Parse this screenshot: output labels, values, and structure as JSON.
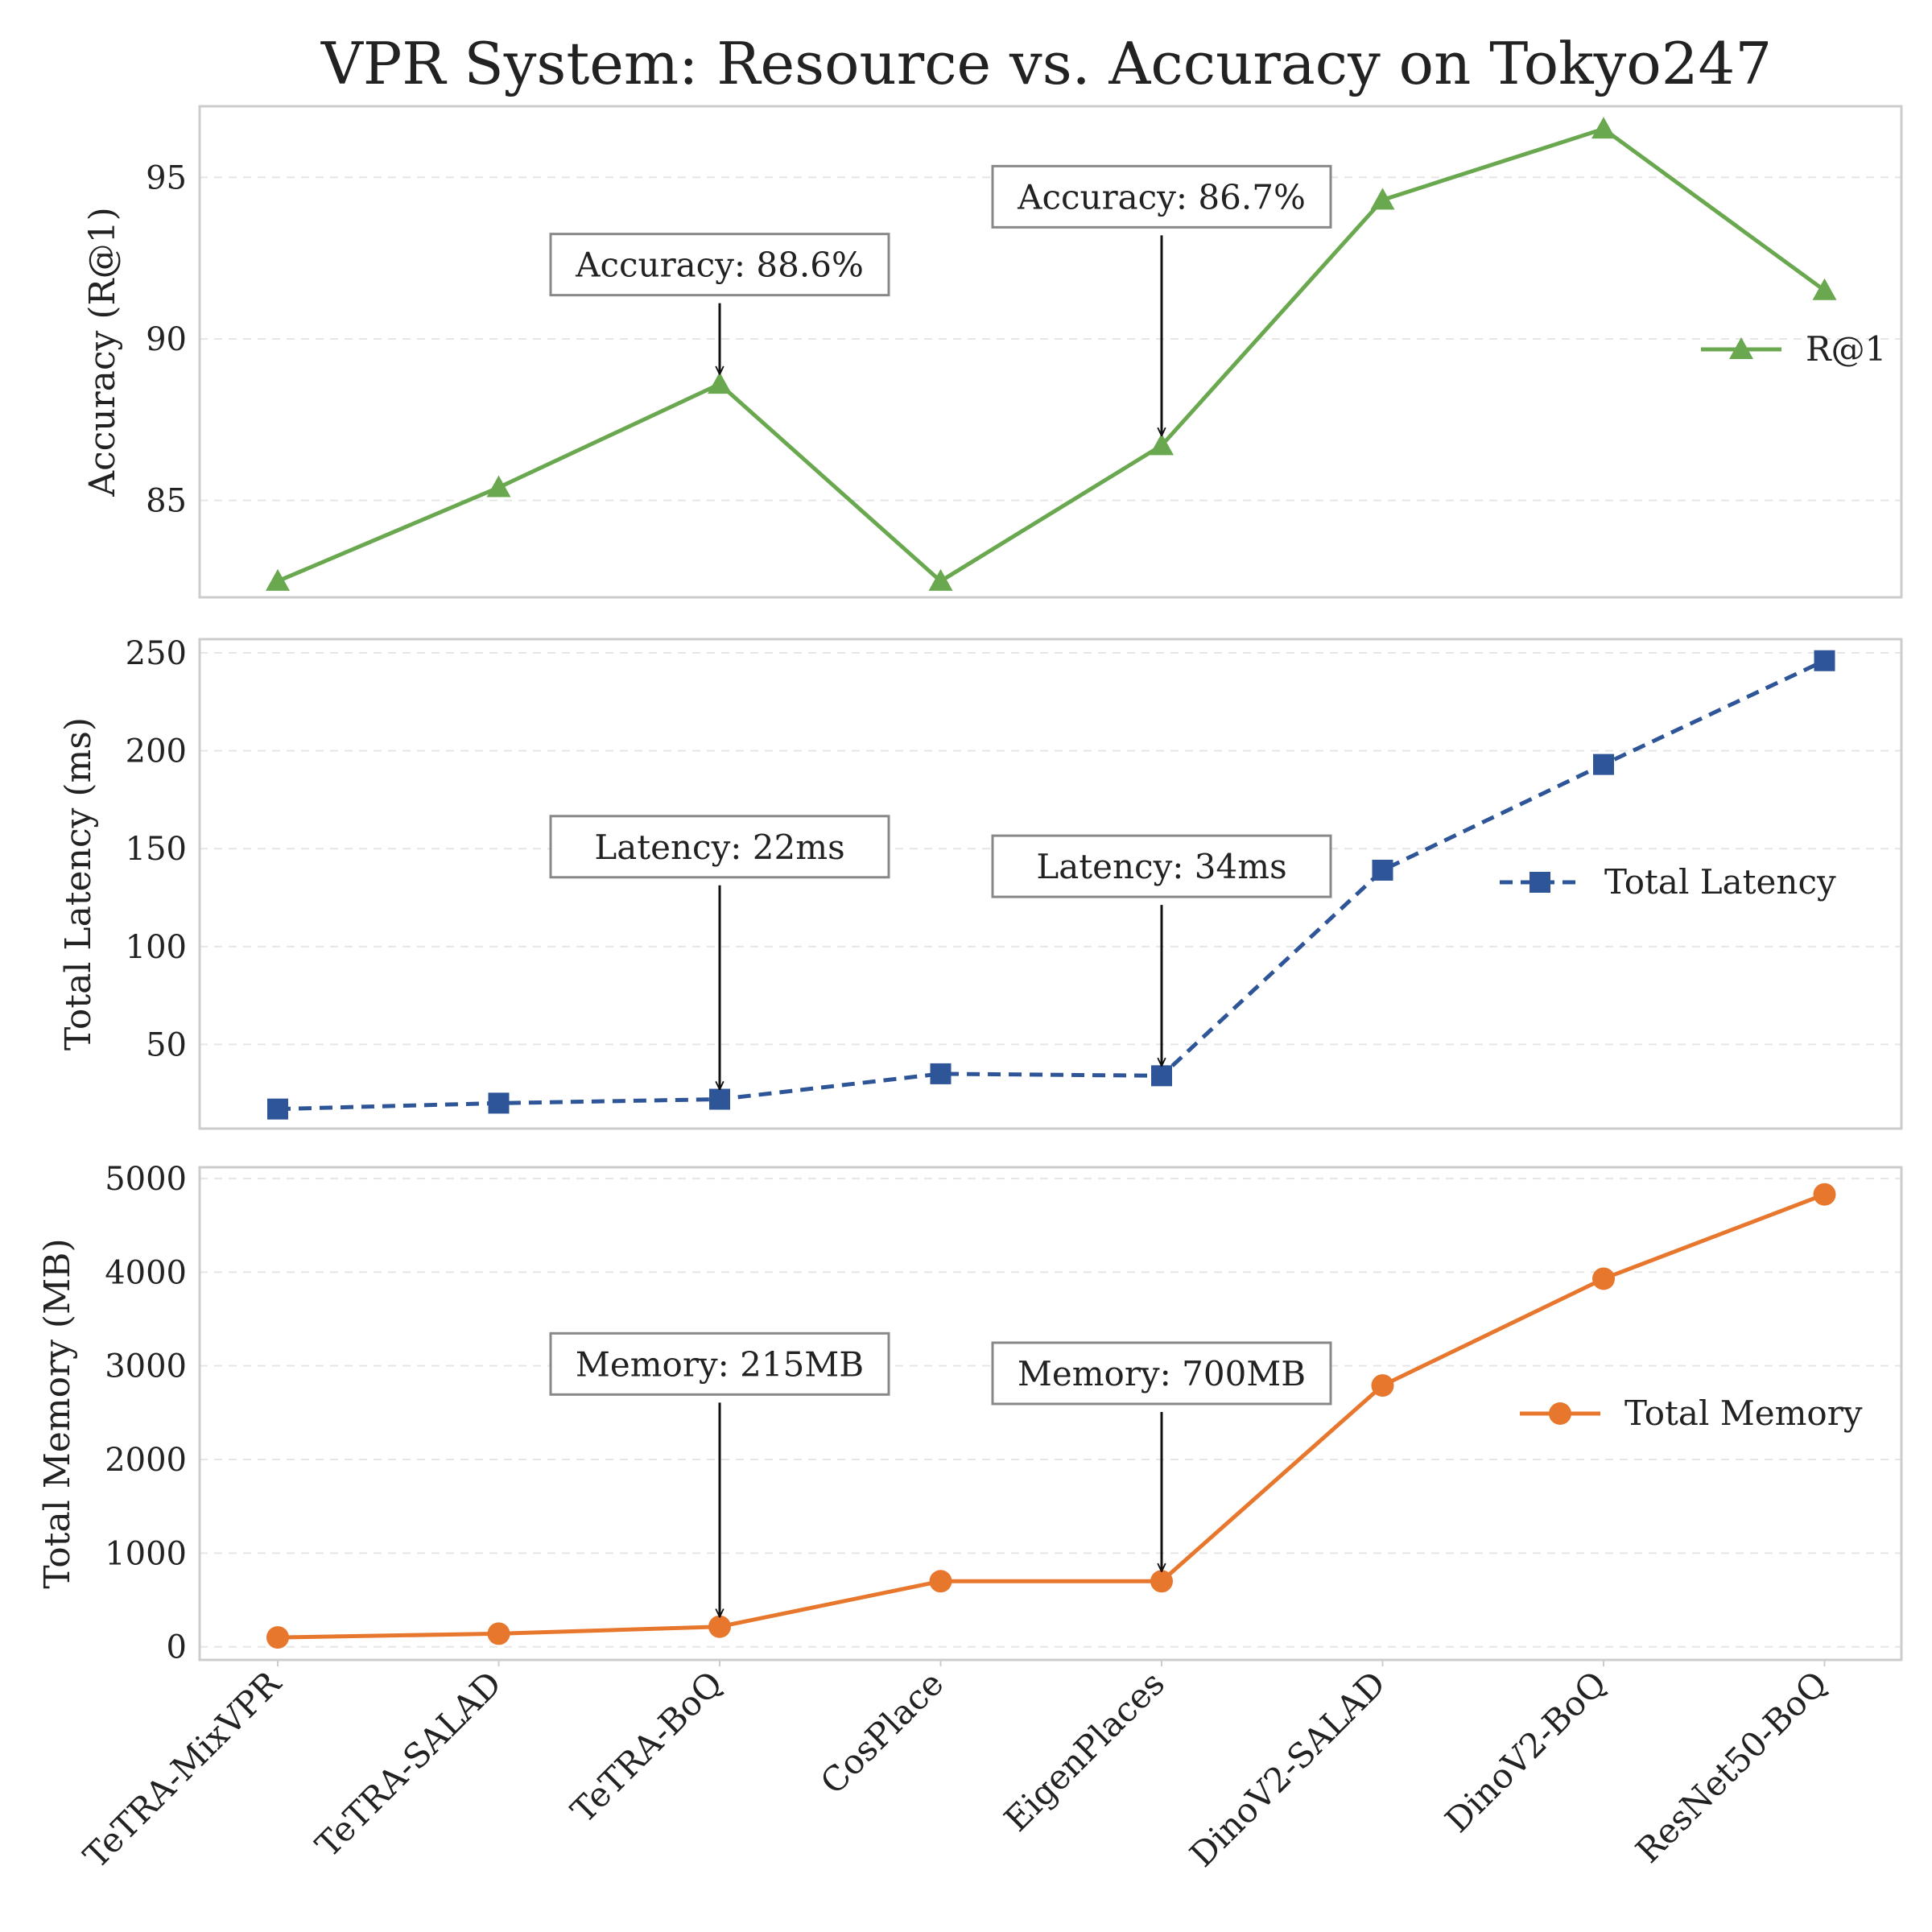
{
  "chart_data": {
    "type": "line",
    "title": "VPR System: Resource vs. Accuracy on Tokyo247",
    "categories": [
      "TeTRA-MixVPR",
      "TeTRA-SALAD",
      "TeTRA-BoQ",
      "CosPlace",
      "EigenPlaces",
      "DinoV2-SALAD",
      "DinoV2-BoQ",
      "ResNet50-BoQ"
    ],
    "panels": [
      {
        "key": "accuracy",
        "ylabel": "Accuracy (R@1)",
        "ylim": [
          82,
          97.2
        ],
        "yticks": [
          85,
          90,
          95
        ],
        "series": [
          {
            "name": "R@1",
            "values": [
              82.5,
              85.4,
              88.6,
              82.5,
              86.7,
              94.3,
              96.5,
              91.5
            ],
            "color": "#6aa84f",
            "marker": "triangle",
            "dash": false
          }
        ],
        "annotations": [
          {
            "text": "Accuracy: 88.6%",
            "index": 2,
            "label_value": 92.3
          },
          {
            "text": "Accuracy: 86.7%",
            "index": 4,
            "label_value": 94.4
          }
        ],
        "legend_position": "center-right"
      },
      {
        "key": "latency",
        "ylabel": "Total Latency (ms)",
        "ylim": [
          7,
          257
        ],
        "yticks": [
          50,
          100,
          150,
          200,
          250
        ],
        "series": [
          {
            "name": "Total Latency",
            "values": [
              17,
              20,
              22,
              35,
              34,
              139,
              193,
              246
            ],
            "color": "#2e5597",
            "marker": "square",
            "dash": true
          }
        ],
        "annotations": [
          {
            "text": "Latency: 22ms",
            "index": 2,
            "label_value": 151
          },
          {
            "text": "Latency: 34ms",
            "index": 4,
            "label_value": 141
          }
        ],
        "legend_position": "center-right"
      },
      {
        "key": "memory",
        "ylabel": "Total Memory (MB)",
        "ylim": [
          -140,
          5120
        ],
        "yticks": [
          0,
          1000,
          2000,
          3000,
          4000,
          5000
        ],
        "series": [
          {
            "name": "Total Memory",
            "values": [
              100,
              140,
              215,
              700,
              700,
              2790,
              3930,
              4830
            ],
            "color": "#e8772e",
            "marker": "circle",
            "dash": false
          }
        ],
        "annotations": [
          {
            "text": "Memory: 215MB",
            "index": 2,
            "label_value": 3020
          },
          {
            "text": "Memory: 700MB",
            "index": 4,
            "label_value": 2920
          }
        ],
        "legend_position": "center-right"
      }
    ],
    "grid": true,
    "grid_style": "dashed"
  }
}
